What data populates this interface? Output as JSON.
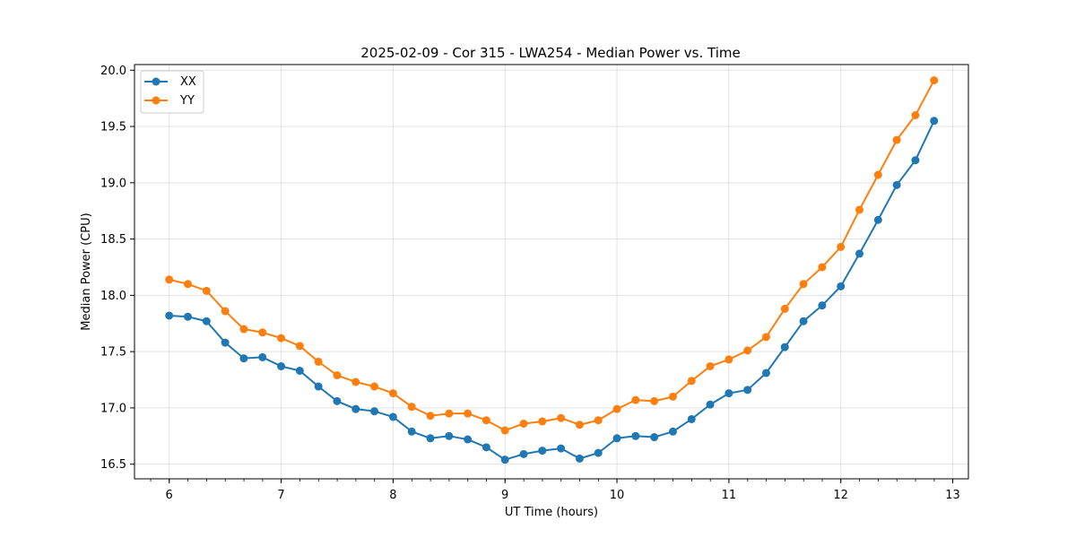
{
  "chart_data": {
    "type": "line",
    "title": "2025-02-09 - Cor 315 - LWA254 - Median Power vs. Time",
    "xlabel": "UT Time (hours)",
    "ylabel": "Median Power (CPU)",
    "xlim": [
      5.69,
      13.14
    ],
    "ylim": [
      16.37,
      20.05
    ],
    "xticks": [
      6,
      7,
      8,
      9,
      10,
      11,
      12,
      13
    ],
    "yticks": [
      16.5,
      17.0,
      17.5,
      18.0,
      18.5,
      19.0,
      19.5,
      20.0
    ],
    "ytick_labels": [
      "16.5",
      "17.0",
      "17.5",
      "18.0",
      "18.5",
      "19.0",
      "19.5",
      "20.0"
    ],
    "grid": true,
    "legend_position": "top-left",
    "x": [
      6.0,
      6.1667,
      6.3333,
      6.5,
      6.6667,
      6.8333,
      7.0,
      7.1667,
      7.3333,
      7.5,
      7.6667,
      7.8333,
      8.0,
      8.1667,
      8.3333,
      8.5,
      8.6667,
      8.8333,
      9.0,
      9.1667,
      9.3333,
      9.5,
      9.6667,
      9.8333,
      10.0,
      10.1667,
      10.3333,
      10.5,
      10.6667,
      10.8333,
      11.0,
      11.1667,
      11.3333,
      11.5,
      11.6667,
      11.8333,
      12.0,
      12.1667,
      12.3333,
      12.5,
      12.6667,
      12.8333
    ],
    "series": [
      {
        "name": "XX",
        "color": "#1f77b4",
        "values": [
          17.82,
          17.81,
          17.77,
          17.58,
          17.44,
          17.45,
          17.37,
          17.33,
          17.19,
          17.06,
          16.99,
          16.97,
          16.92,
          16.79,
          16.73,
          16.75,
          16.72,
          16.65,
          16.54,
          16.59,
          16.62,
          16.64,
          16.55,
          16.6,
          16.73,
          16.75,
          16.74,
          16.79,
          16.9,
          17.03,
          17.13,
          17.16,
          17.31,
          17.54,
          17.77,
          17.91,
          18.08,
          18.37,
          18.67,
          18.98,
          19.2,
          19.55
        ]
      },
      {
        "name": "YY",
        "color": "#ff7f0e",
        "values": [
          18.14,
          18.1,
          18.04,
          17.86,
          17.7,
          17.67,
          17.62,
          17.55,
          17.41,
          17.29,
          17.23,
          17.19,
          17.13,
          17.01,
          16.93,
          16.95,
          16.95,
          16.89,
          16.8,
          16.86,
          16.88,
          16.91,
          16.85,
          16.89,
          16.99,
          17.07,
          17.06,
          17.1,
          17.24,
          17.37,
          17.43,
          17.51,
          17.63,
          17.88,
          18.1,
          18.25,
          18.43,
          18.76,
          19.07,
          19.38,
          19.6,
          19.91
        ]
      }
    ]
  }
}
